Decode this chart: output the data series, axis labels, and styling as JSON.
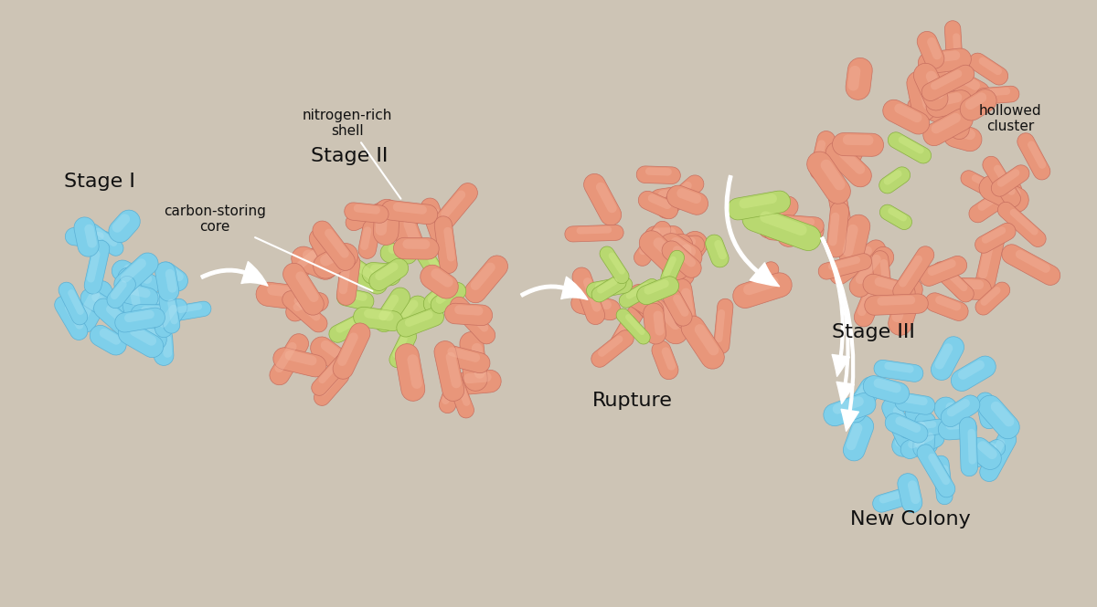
{
  "bg_color": "#cdc4b5",
  "blue_color": "#7ecfea",
  "blue_light": "#b0e4f5",
  "blue_dark": "#5ab0d5",
  "salmon_color": "#e8967a",
  "salmon_light": "#f5b8a0",
  "salmon_dark": "#c87060",
  "green_color": "#b8d870",
  "green_light": "#d8f090",
  "green_dark": "#88b040",
  "text_color": "#111111",
  "label_color": "#333333",
  "white": "#ffffff",
  "stage1_label": "Stage I",
  "stage2_label": "Stage II",
  "stage3_label": "Stage III",
  "rupture_label": "Rupture",
  "new_colony_label": "New Colony",
  "core_label": "carbon-storing\ncore",
  "shell_label": "nitrogen-rich\nshell",
  "hollowed_label": "hollowed\ncluster",
  "figsize": [
    12.0,
    6.65
  ],
  "dpi": 100
}
